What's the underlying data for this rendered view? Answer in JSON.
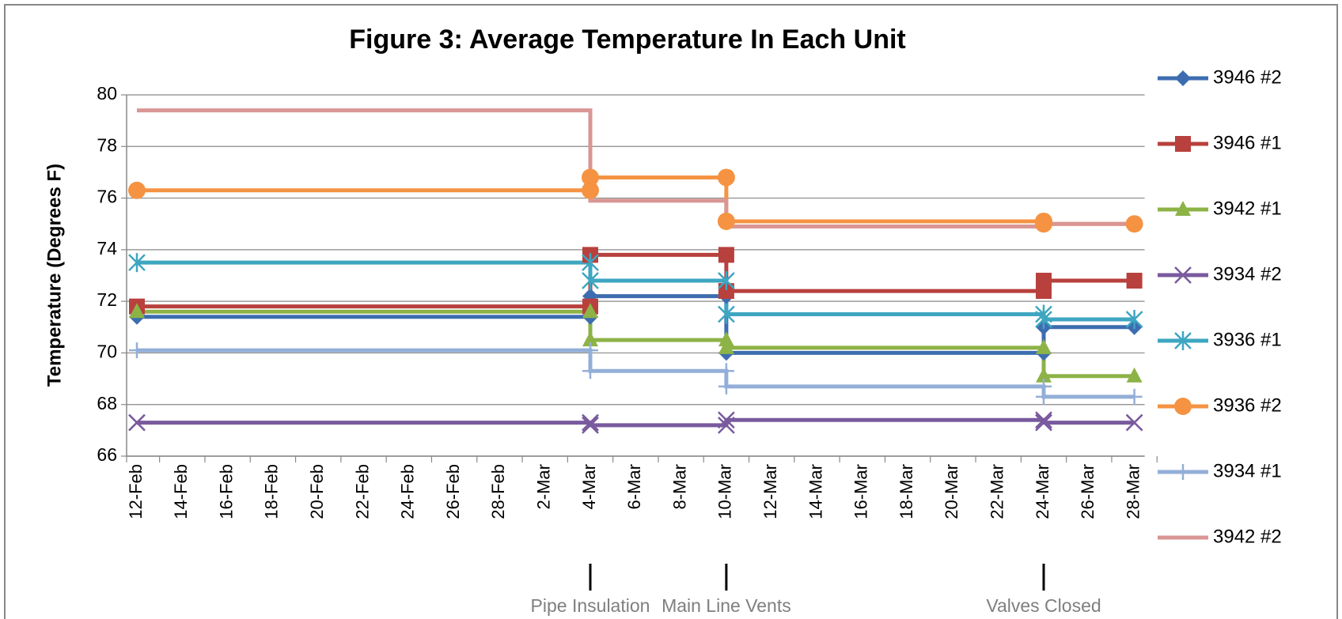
{
  "chart_data": {
    "type": "line",
    "title": "Figure 3: Average Temperature In Each Unit",
    "y_label": "Temperature (Degrees F)",
    "categories": [
      "12-Feb",
      "14-Feb",
      "16-Feb",
      "18-Feb",
      "20-Feb",
      "22-Feb",
      "24-Feb",
      "26-Feb",
      "28-Feb",
      "2-Mar",
      "4-Mar",
      "6-Mar",
      "8-Mar",
      "10-Mar",
      "12-Mar",
      "14-Mar",
      "16-Mar",
      "18-Mar",
      "20-Mar",
      "22-Mar",
      "24-Mar",
      "26-Mar",
      "28-Mar"
    ],
    "ylim": [
      66,
      80
    ],
    "yticks": [
      66,
      68,
      70,
      72,
      74,
      76,
      78,
      80
    ],
    "grid": true,
    "legend": "right",
    "series": [
      {
        "name": "3946 #2",
        "color": "#3d6db0",
        "marker": "diamond",
        "x": [
          "12-Feb",
          "4-Mar",
          "4-Mar",
          "10-Mar",
          "10-Mar",
          "24-Mar",
          "24-Mar",
          "28-Mar"
        ],
        "values": [
          71.4,
          71.4,
          72.2,
          72.2,
          70.0,
          70.0,
          71.0,
          71.0
        ]
      },
      {
        "name": "3946 #1",
        "color": "#b8403d",
        "marker": "square",
        "x": [
          "12-Feb",
          "4-Mar",
          "4-Mar",
          "10-Mar",
          "10-Mar",
          "24-Mar",
          "24-Mar",
          "28-Mar"
        ],
        "values": [
          71.8,
          71.8,
          73.8,
          73.8,
          72.4,
          72.4,
          72.8,
          72.8
        ]
      },
      {
        "name": "3942 #1",
        "color": "#8db347",
        "marker": "triangle",
        "x": [
          "12-Feb",
          "4-Mar",
          "4-Mar",
          "10-Mar",
          "10-Mar",
          "24-Mar",
          "24-Mar",
          "28-Mar"
        ],
        "values": [
          71.6,
          71.6,
          70.5,
          70.5,
          70.2,
          70.2,
          69.1,
          69.1
        ]
      },
      {
        "name": "3934 #2",
        "color": "#7a5a9e",
        "marker": "x",
        "x": [
          "12-Feb",
          "4-Mar",
          "4-Mar",
          "10-Mar",
          "10-Mar",
          "24-Mar",
          "24-Mar",
          "28-Mar"
        ],
        "values": [
          67.3,
          67.3,
          67.2,
          67.2,
          67.4,
          67.4,
          67.3,
          67.3
        ]
      },
      {
        "name": "3936 #1",
        "color": "#3ea6c1",
        "marker": "asterisk",
        "x": [
          "12-Feb",
          "4-Mar",
          "4-Mar",
          "10-Mar",
          "10-Mar",
          "24-Mar",
          "24-Mar",
          "28-Mar"
        ],
        "values": [
          73.5,
          73.5,
          72.8,
          72.8,
          71.5,
          71.5,
          71.3,
          71.3
        ]
      },
      {
        "name": "3936 #2",
        "color": "#f59343",
        "marker": "circle",
        "x": [
          "12-Feb",
          "4-Mar",
          "4-Mar",
          "10-Mar",
          "10-Mar",
          "24-Mar",
          "24-Mar",
          "28-Mar"
        ],
        "values": [
          76.3,
          76.3,
          76.8,
          76.8,
          75.1,
          75.1,
          75.0,
          75.0
        ]
      },
      {
        "name": "3934 #1",
        "color": "#93afd8",
        "marker": "plus",
        "x": [
          "12-Feb",
          "4-Mar",
          "4-Mar",
          "10-Mar",
          "10-Mar",
          "24-Mar",
          "24-Mar",
          "28-Mar"
        ],
        "values": [
          70.1,
          70.1,
          69.3,
          69.3,
          68.7,
          68.7,
          68.3,
          68.3
        ]
      },
      {
        "name": "3942 #2",
        "color": "#d99694",
        "marker": "none",
        "x": [
          "12-Feb",
          "4-Mar",
          "4-Mar",
          "10-Mar",
          "10-Mar",
          "24-Mar",
          "24-Mar",
          "28-Mar"
        ],
        "values": [
          79.4,
          79.4,
          75.9,
          75.9,
          74.9,
          74.9,
          75.0,
          75.0
        ]
      }
    ],
    "annotations": [
      {
        "x": "4-Mar",
        "text": "Pipe Insulation"
      },
      {
        "x": "10-Mar",
        "text": "Main Line Vents"
      },
      {
        "x": "24-Mar",
        "text": "Valves Closed"
      }
    ]
  }
}
